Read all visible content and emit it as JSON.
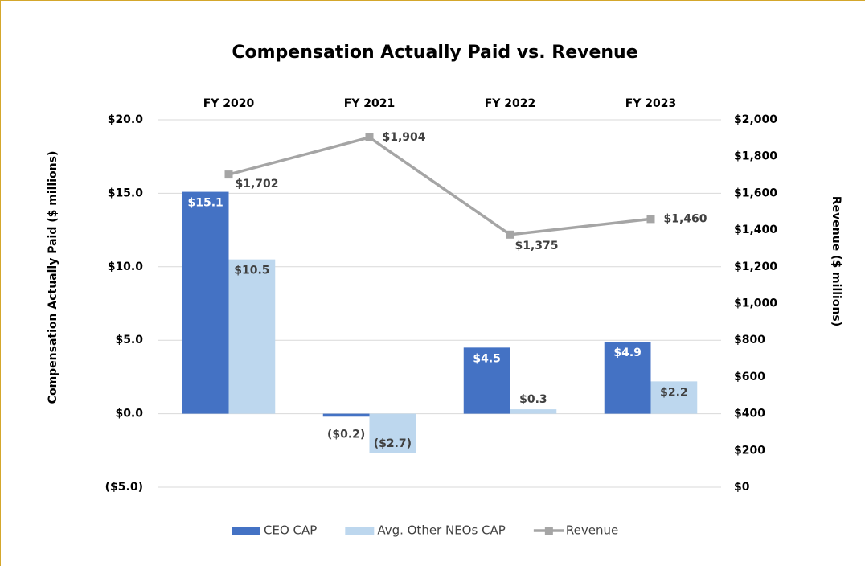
{
  "chart_data": {
    "type": "bar",
    "title": "Compensation Actually Paid vs. Revenue",
    "ylabel": "Compensation Actually Paid ($ millions)",
    "y2label": "Revenue ($ millions)",
    "categories": [
      "FY 2020",
      "FY 2021",
      "FY 2022",
      "FY 2023"
    ],
    "series": [
      {
        "name": "CEO CAP",
        "type": "bar",
        "color": "#4472c4",
        "values": [
          15.1,
          -0.2,
          4.5,
          4.9
        ],
        "value_labels": [
          "$15.1",
          "($0.2)",
          "$4.5",
          "$4.9"
        ]
      },
      {
        "name": "Avg. Other NEOs CAP",
        "type": "bar",
        "color": "#bdd7ee",
        "values": [
          10.5,
          -2.7,
          0.3,
          2.2
        ],
        "value_labels": [
          "$10.5",
          "($2.7)",
          "$0.3",
          "$2.2"
        ]
      },
      {
        "name": "Revenue",
        "type": "line",
        "axis": "y2",
        "color": "#a5a5a5",
        "values": [
          1702,
          1904,
          1375,
          1460
        ],
        "value_labels": [
          "$1,702",
          "$1,904",
          "$1,375",
          "$1,460"
        ]
      }
    ],
    "ylim": [
      -5,
      20
    ],
    "yticks": [
      {
        "value": -5,
        "label": "($5.0)"
      },
      {
        "value": 0,
        "label": "$0.0"
      },
      {
        "value": 5,
        "label": "$5.0"
      },
      {
        "value": 10,
        "label": "$10.0"
      },
      {
        "value": 15,
        "label": "$15.0"
      },
      {
        "value": 20,
        "label": "$20.0"
      }
    ],
    "y2lim": [
      0,
      2000
    ],
    "y2ticks": [
      {
        "value": 0,
        "label": "$0"
      },
      {
        "value": 200,
        "label": "$200"
      },
      {
        "value": 400,
        "label": "$400"
      },
      {
        "value": 600,
        "label": "$600"
      },
      {
        "value": 800,
        "label": "$800"
      },
      {
        "value": 1000,
        "label": "$1,000"
      },
      {
        "value": 1200,
        "label": "$1,200"
      },
      {
        "value": 1400,
        "label": "$1,400"
      },
      {
        "value": 1600,
        "label": "$1,600"
      },
      {
        "value": 1800,
        "label": "$1,800"
      },
      {
        "value": 2000,
        "label": "$2,000"
      }
    ],
    "grid": true,
    "legend": "bottom"
  }
}
